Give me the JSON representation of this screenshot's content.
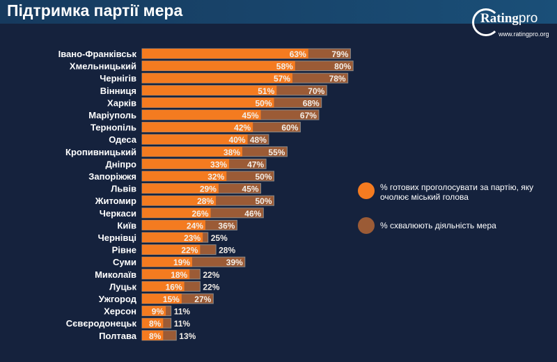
{
  "header": {
    "title": "Підтримка партії мера"
  },
  "logo": {
    "name_bold": "Rating",
    "name_light": "pro",
    "url": "www.ratingpro.org"
  },
  "colors": {
    "series1": "#f47b20",
    "series2": "#9b5b36",
    "background": "#15223d"
  },
  "chart_data": {
    "type": "bar",
    "orientation": "horizontal",
    "categories": [
      "Івано-Франківськ",
      "Хмельницький",
      "Чернігів",
      "Вінниця",
      "Харків",
      "Маріуполь",
      "Тернопіль",
      "Одеса",
      "Кропивницький",
      "Дніпро",
      "Запоріжжя",
      "Львів",
      "Житомир",
      "Черкаси",
      "Київ",
      "Чернівці",
      "Рівне",
      "Суми",
      "Миколаїв",
      "Луцьк",
      "Ужгород",
      "Херсон",
      "Сєвєродонецьк",
      "Полтава"
    ],
    "series": [
      {
        "name": "% готових проголосувати за партію, яку очолює міський голова",
        "values": [
          63,
          58,
          57,
          51,
          50,
          45,
          42,
          40,
          38,
          33,
          32,
          29,
          28,
          26,
          24,
          23,
          22,
          19,
          18,
          16,
          15,
          9,
          8,
          8
        ]
      },
      {
        "name": "% схвалюють діяльність мера",
        "values": [
          79,
          80,
          78,
          70,
          68,
          67,
          60,
          48,
          55,
          47,
          50,
          45,
          50,
          46,
          36,
          25,
          28,
          39,
          22,
          22,
          27,
          11,
          11,
          13
        ]
      }
    ],
    "value_suffix": "%",
    "legend": "right",
    "grid": false
  }
}
